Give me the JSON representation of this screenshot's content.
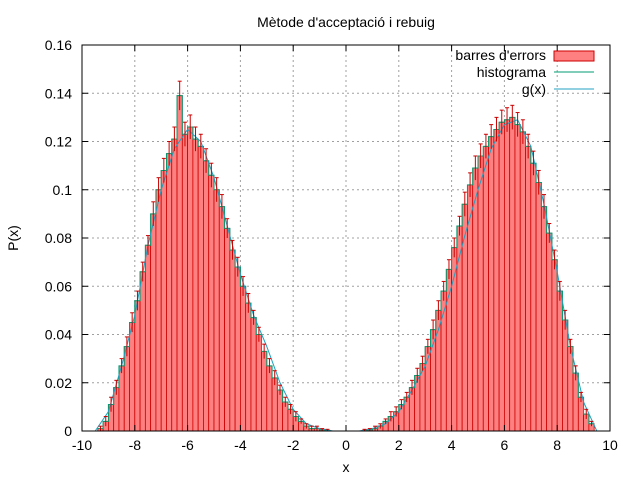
{
  "chart_data": {
    "type": "bar",
    "title": "Mètode d'acceptació i rebuig",
    "xlabel": "x",
    "ylabel": "P(x)",
    "xlim": [
      -10,
      10
    ],
    "ylim": [
      0,
      0.16
    ],
    "xticks": [
      "-10",
      "-8",
      "-6",
      "-4",
      "-2",
      "0",
      "2",
      "4",
      "6",
      "8",
      "10"
    ],
    "yticks": [
      "0",
      "0.02",
      "0.04",
      "0.06",
      "0.08",
      "0.1",
      "0.12",
      "0.14",
      "0.16"
    ],
    "grid": true,
    "legend_position": "top-right",
    "bin_width": 0.2,
    "colors": {
      "bar_fill": "#ff8080",
      "bar_edge": "#cc0000",
      "errorbar": "#cc0000",
      "histogram_line": "#009e73",
      "g_line": "#20a0c0"
    },
    "series": [
      {
        "name": "barres d'errors",
        "style": "boxerrorbars",
        "x": [
          -9.3,
          -9.1,
          -8.9,
          -8.7,
          -8.5,
          -8.3,
          -8.1,
          -7.9,
          -7.7,
          -7.5,
          -7.3,
          -7.1,
          -6.9,
          -6.7,
          -6.5,
          -6.3,
          -6.1,
          -5.9,
          -5.7,
          -5.5,
          -5.3,
          -5.1,
          -4.9,
          -4.7,
          -4.5,
          -4.3,
          -4.1,
          -3.9,
          -3.7,
          -3.5,
          -3.3,
          -3.1,
          -2.9,
          -2.7,
          -2.5,
          -2.3,
          -2.1,
          -1.9,
          -1.7,
          -1.5,
          -1.3,
          -1.1,
          -0.9,
          -0.7,
          0.7,
          0.9,
          1.1,
          1.3,
          1.5,
          1.7,
          1.9,
          2.1,
          2.3,
          2.5,
          2.7,
          2.9,
          3.1,
          3.3,
          3.5,
          3.7,
          3.9,
          4.1,
          4.3,
          4.5,
          4.7,
          4.9,
          5.1,
          5.3,
          5.5,
          5.7,
          5.9,
          6.1,
          6.3,
          6.5,
          6.7,
          6.9,
          7.1,
          7.3,
          7.5,
          7.7,
          7.9,
          8.1,
          8.3,
          8.5,
          8.7,
          8.9,
          9.1,
          9.3
        ],
        "y": [
          0.001,
          0.004,
          0.011,
          0.018,
          0.027,
          0.035,
          0.045,
          0.054,
          0.066,
          0.077,
          0.09,
          0.1,
          0.108,
          0.115,
          0.121,
          0.139,
          0.123,
          0.126,
          0.121,
          0.118,
          0.112,
          0.106,
          0.1,
          0.093,
          0.084,
          0.075,
          0.068,
          0.06,
          0.053,
          0.047,
          0.04,
          0.033,
          0.027,
          0.022,
          0.017,
          0.012,
          0.009,
          0.006,
          0.004,
          0.002,
          0.001,
          0.001,
          0.0005,
          0.0002,
          0.0002,
          0.0005,
          0.001,
          0.002,
          0.004,
          0.006,
          0.008,
          0.011,
          0.014,
          0.018,
          0.023,
          0.028,
          0.035,
          0.042,
          0.05,
          0.058,
          0.067,
          0.076,
          0.085,
          0.094,
          0.102,
          0.109,
          0.114,
          0.118,
          0.122,
          0.125,
          0.128,
          0.129,
          0.13,
          0.127,
          0.124,
          0.118,
          0.111,
          0.103,
          0.093,
          0.082,
          0.071,
          0.058,
          0.046,
          0.035,
          0.024,
          0.014,
          0.007,
          0.003
        ],
        "error": [
          0.001,
          0.002,
          0.003,
          0.003,
          0.003,
          0.004,
          0.004,
          0.004,
          0.004,
          0.004,
          0.005,
          0.005,
          0.005,
          0.005,
          0.005,
          0.006,
          0.005,
          0.005,
          0.005,
          0.005,
          0.005,
          0.005,
          0.005,
          0.005,
          0.004,
          0.004,
          0.004,
          0.004,
          0.004,
          0.003,
          0.003,
          0.003,
          0.003,
          0.003,
          0.002,
          0.002,
          0.002,
          0.002,
          0.001,
          0.001,
          0.001,
          0.001,
          0.0005,
          0.0005,
          0.0005,
          0.0005,
          0.001,
          0.001,
          0.001,
          0.002,
          0.002,
          0.002,
          0.002,
          0.003,
          0.003,
          0.003,
          0.003,
          0.004,
          0.004,
          0.004,
          0.004,
          0.004,
          0.004,
          0.005,
          0.005,
          0.005,
          0.005,
          0.005,
          0.005,
          0.005,
          0.005,
          0.005,
          0.005,
          0.005,
          0.005,
          0.005,
          0.005,
          0.005,
          0.005,
          0.004,
          0.004,
          0.004,
          0.004,
          0.003,
          0.003,
          0.002,
          0.002,
          0.001
        ]
      },
      {
        "name": "histograma",
        "style": "steps"
      },
      {
        "name": "g(x)",
        "style": "line",
        "x": [
          -9.5,
          -9.0,
          -8.5,
          -8.0,
          -7.5,
          -7.0,
          -6.5,
          -6.0,
          -5.5,
          -5.0,
          -4.5,
          -4.0,
          -3.5,
          -3.0,
          -2.5,
          -2.0,
          -1.5,
          -1.0,
          -0.5,
          0.5,
          1.0,
          1.5,
          2.0,
          2.5,
          3.0,
          3.5,
          4.0,
          4.5,
          5.0,
          5.5,
          6.0,
          6.5,
          7.0,
          7.5,
          8.0,
          8.5,
          9.0,
          9.5
        ],
        "y": [
          0.0,
          0.008,
          0.027,
          0.048,
          0.077,
          0.1,
          0.117,
          0.125,
          0.12,
          0.105,
          0.085,
          0.065,
          0.048,
          0.035,
          0.02,
          0.009,
          0.003,
          0.001,
          0.0,
          0.0,
          0.001,
          0.003,
          0.008,
          0.017,
          0.027,
          0.042,
          0.06,
          0.081,
          0.1,
          0.117,
          0.127,
          0.129,
          0.118,
          0.094,
          0.066,
          0.035,
          0.012,
          0.0
        ]
      }
    ]
  }
}
